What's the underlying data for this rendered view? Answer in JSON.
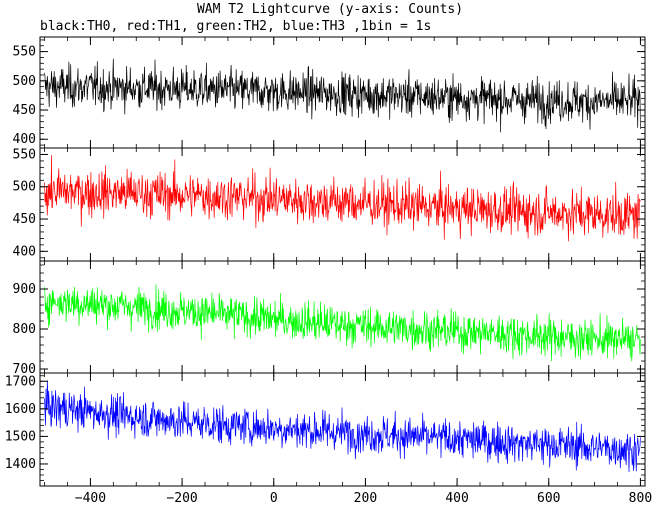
{
  "chart_data": {
    "type": "line",
    "title": "WAM T2 Lightcurve (y-axis: Counts)",
    "subtitle": "black:TH0, red:TH1, green:TH2, blue:TH3 ,1bin = 1s",
    "xlabel": "",
    "ylabel": "",
    "xlim": [
      -510,
      810
    ],
    "x_ticks": [
      -400,
      -200,
      0,
      200,
      400,
      600,
      800
    ],
    "x_tick_labels": [
      "−400",
      "−200",
      "0",
      "200",
      "400",
      "600",
      "800"
    ],
    "grid": false,
    "bin_seconds": 1,
    "panels": [
      {
        "name": "TH0",
        "color": "#000000",
        "ylim": [
          385,
          575
        ],
        "yticks": [
          400,
          450,
          500,
          550
        ],
        "trend_x": [
          -500,
          -300,
          -100,
          100,
          300,
          500,
          700,
          800
        ],
        "trend_y": [
          490,
          488,
          484,
          479,
          474,
          468,
          464,
          466
        ],
        "noise": 28
      },
      {
        "name": "TH1",
        "color": "#ff0000",
        "ylim": [
          385,
          560
        ],
        "yticks": [
          400,
          450,
          500,
          550
        ],
        "trend_x": [
          -500,
          -300,
          -100,
          100,
          300,
          500,
          700,
          800
        ],
        "trend_y": [
          493,
          490,
          485,
          478,
          470,
          463,
          458,
          455
        ],
        "noise": 28
      },
      {
        "name": "TH2",
        "color": "#00ff00",
        "ylim": [
          690,
          970
        ],
        "yticks": [
          700,
          800,
          900
        ],
        "trend_x": [
          -500,
          -300,
          -100,
          100,
          300,
          500,
          700,
          800
        ],
        "trend_y": [
          870,
          855,
          835,
          815,
          800,
          788,
          775,
          772
        ],
        "noise": 38
      },
      {
        "name": "TH3",
        "color": "#0000ff",
        "ylim": [
          1320,
          1730
        ],
        "yticks": [
          1400,
          1500,
          1600,
          1700
        ],
        "trend_x": [
          -500,
          -300,
          -100,
          100,
          300,
          500,
          700,
          800
        ],
        "trend_y": [
          1610,
          1570,
          1540,
          1520,
          1500,
          1480,
          1460,
          1450
        ],
        "noise": 55
      }
    ]
  }
}
